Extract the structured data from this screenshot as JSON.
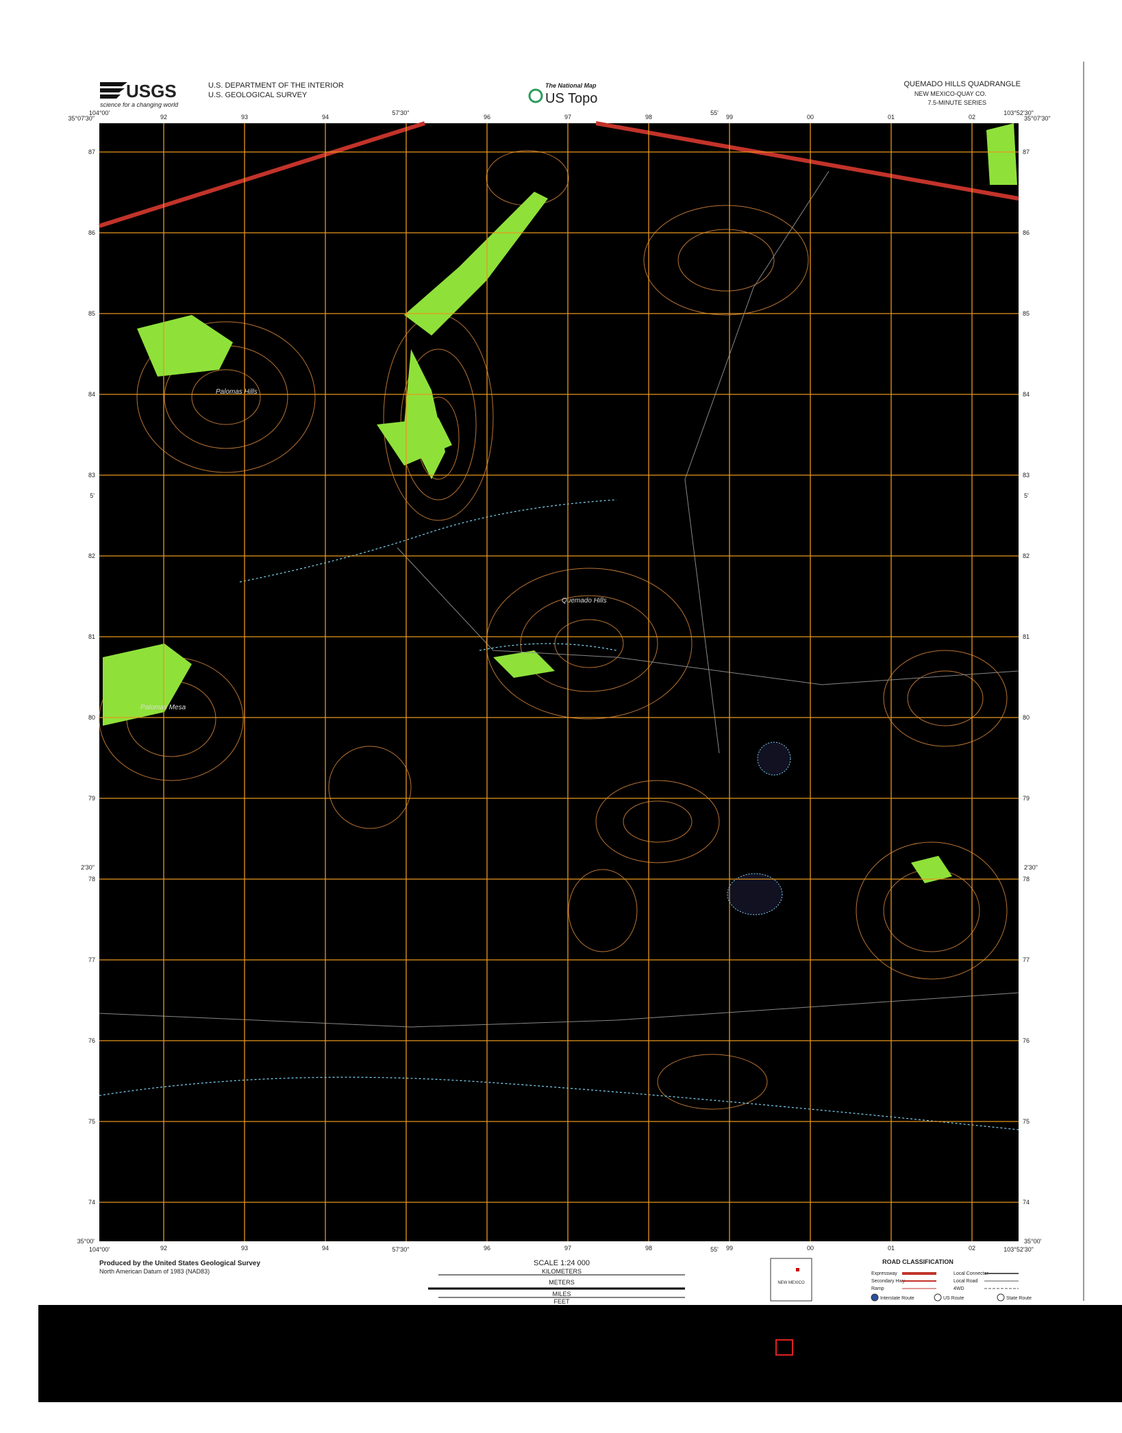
{
  "header": {
    "agency_logo": "USGS",
    "agency_tagline": "science for a changing world",
    "department": "U.S. DEPARTMENT OF THE INTERIOR",
    "survey": "U.S. GEOLOGICAL SURVEY",
    "product_line": "The National Map",
    "product": "US Topo",
    "quadrangle": "QUEMADO HILLS QUADRANGLE",
    "state_county": "NEW MEXICO-QUAY CO.",
    "series": "7.5-MINUTE SERIES"
  },
  "corners": {
    "west_longitude": "104°00'",
    "east_longitude": "103°52'30\"",
    "north_latitude": "35°07'30\"",
    "south_latitude": "35°00'",
    "mid_longitude": "57'30\"",
    "mid_longitude_2": "55'",
    "mid_latitude": "5'",
    "mid_latitude_2": "2'30\""
  },
  "grid": {
    "eastings": [
      "92",
      "93",
      "94",
      "96",
      "97",
      "98",
      "99",
      "00",
      "01",
      "02"
    ],
    "northings": [
      "87",
      "86",
      "85",
      "84",
      "83",
      "82",
      "81",
      "80",
      "79",
      "78",
      "77",
      "76",
      "75",
      "74"
    ]
  },
  "place_names": [
    "Palomas Mesa",
    "Palomas Hills",
    "Quemado Hills"
  ],
  "footer": {
    "produced_by": "Produced by the United States Geological Survey",
    "datum_notes": "North American Datum of 1983 (NAD83)",
    "scale": "SCALE 1:24 000",
    "units": [
      "KILOMETERS",
      "METERS",
      "MILES",
      "FEET"
    ],
    "road_classification": "ROAD CLASSIFICATION",
    "road_types": [
      "Expressway",
      "Secondary Hwy",
      "Ramp",
      "Local Connector",
      "Local Road",
      "4WD"
    ],
    "route_types": [
      "Interstate Route",
      "US Route",
      "State Route"
    ],
    "state_label": "NEW MEXICO"
  }
}
